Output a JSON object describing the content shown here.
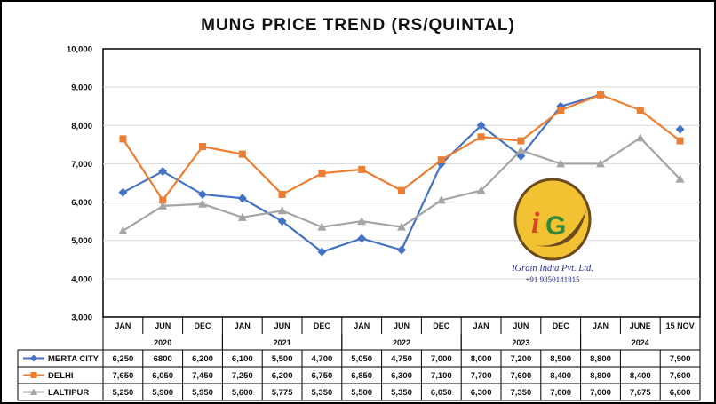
{
  "chart_data": {
    "type": "line",
    "title": "MUNG PRICE TREND (RS/QUINTAL)",
    "categories": [
      "JAN",
      "JUN",
      "DEC",
      "JAN",
      "JUN",
      "DEC",
      "JAN",
      "JUN",
      "DEC",
      "JAN",
      "JUN",
      "DEC",
      "JAN",
      "JUNE",
      "15 NOV"
    ],
    "year_groups": [
      {
        "label": "2020",
        "start": 0,
        "end": 2
      },
      {
        "label": "2021",
        "start": 3,
        "end": 5
      },
      {
        "label": "2022",
        "start": 6,
        "end": 8
      },
      {
        "label": "2023",
        "start": 9,
        "end": 11
      },
      {
        "label": "2024",
        "start": 12,
        "end": 14
      }
    ],
    "ylim": [
      3000,
      10000
    ],
    "yticks": [
      3000,
      4000,
      5000,
      6000,
      7000,
      8000,
      9000,
      10000
    ],
    "ytick_labels": [
      "3,000",
      "4,000",
      "5,000",
      "6,000",
      "7,000",
      "8,000",
      "9,000",
      "10,000"
    ],
    "grid": "horizontal",
    "legend": "data table below chart",
    "series": [
      {
        "name": "MERTA CITY",
        "color": "#4472c4",
        "marker": "diamond",
        "values": [
          6250,
          6800,
          6200,
          6100,
          5500,
          4700,
          5050,
          4750,
          7000,
          8000,
          7200,
          8500,
          8800,
          null,
          7900
        ],
        "labels": [
          "6,250",
          "6800",
          "6,200",
          "6,100",
          "5,500",
          "4,700",
          "5,050",
          "4,750",
          "7,000",
          "8,000",
          "7,200",
          "8,500",
          "8,800",
          "",
          "7,900"
        ]
      },
      {
        "name": "DELHI",
        "color": "#ed7d31",
        "marker": "square",
        "values": [
          7650,
          6050,
          7450,
          7250,
          6200,
          6750,
          6850,
          6300,
          7100,
          7700,
          7600,
          8400,
          8800,
          8400,
          7600
        ],
        "labels": [
          "7,650",
          "6,050",
          "7,450",
          "7,250",
          "6,200",
          "6,750",
          "6,850",
          "6,300",
          "7,100",
          "7,700",
          "7,600",
          "8,400",
          "8,800",
          "8,400",
          "7,600"
        ]
      },
      {
        "name": "LALTIPUR",
        "color": "#a5a5a5",
        "marker": "triangle",
        "values": [
          5250,
          5900,
          5950,
          5600,
          5775,
          5350,
          5500,
          5350,
          6050,
          6300,
          7350,
          7000,
          7000,
          7675,
          6600
        ],
        "labels": [
          "5,250",
          "5,900",
          "5,950",
          "5,600",
          "5,775",
          "5,350",
          "5,500",
          "5,350",
          "6,050",
          "6,300",
          "7,350",
          "7,000",
          "7,000",
          "7,675",
          "6,600"
        ]
      }
    ]
  },
  "logo": {
    "letters": "IG",
    "company": "IGrain India Pvt. Ltd.",
    "phone": "+91 9350141815",
    "colors": {
      "gold": "#f2c232",
      "dark": "#6b4a1c",
      "red": "#d8462a",
      "green": "#2e8a3a"
    }
  }
}
